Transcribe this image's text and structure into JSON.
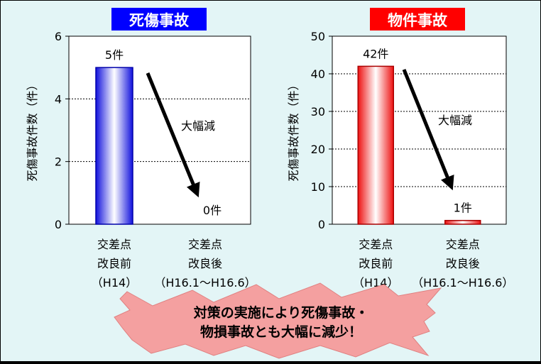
{
  "chart_data": [
    {
      "type": "bar",
      "title": "死傷事故",
      "title_color": "#0000ff",
      "ylabel": "死傷事故件数（件）",
      "ylim": [
        0,
        6
      ],
      "yticks": [
        0,
        2,
        4,
        6
      ],
      "grid": true,
      "categories": [
        [
          "交差点",
          "改良前",
          "（H14）"
        ],
        [
          "交差点",
          "改良後",
          "（H16.1～H16.6）"
        ]
      ],
      "values": [
        5,
        0
      ],
      "value_labels": [
        "5件",
        "0件"
      ],
      "annotation": "大幅減",
      "bar_color": "#2222ee"
    },
    {
      "type": "bar",
      "title": "物件事故",
      "title_color": "#ff0000",
      "ylabel": "死傷事故件数（件）",
      "ylim": [
        0,
        50
      ],
      "yticks": [
        0,
        10,
        20,
        30,
        40,
        50
      ],
      "grid": true,
      "categories": [
        [
          "交差点",
          "改良前",
          "（H14）"
        ],
        [
          "交差点",
          "改良後",
          "（H16.1～H16.6）"
        ]
      ],
      "values": [
        42,
        1
      ],
      "value_labels": [
        "42件",
        "1件"
      ],
      "annotation": "大幅減",
      "bar_color": "#ee2222"
    }
  ],
  "banner": {
    "lines": [
      "対策の実施により死傷事故・",
      "物損事故とも大幅に減少！"
    ],
    "fill": "#f4a0a0"
  }
}
